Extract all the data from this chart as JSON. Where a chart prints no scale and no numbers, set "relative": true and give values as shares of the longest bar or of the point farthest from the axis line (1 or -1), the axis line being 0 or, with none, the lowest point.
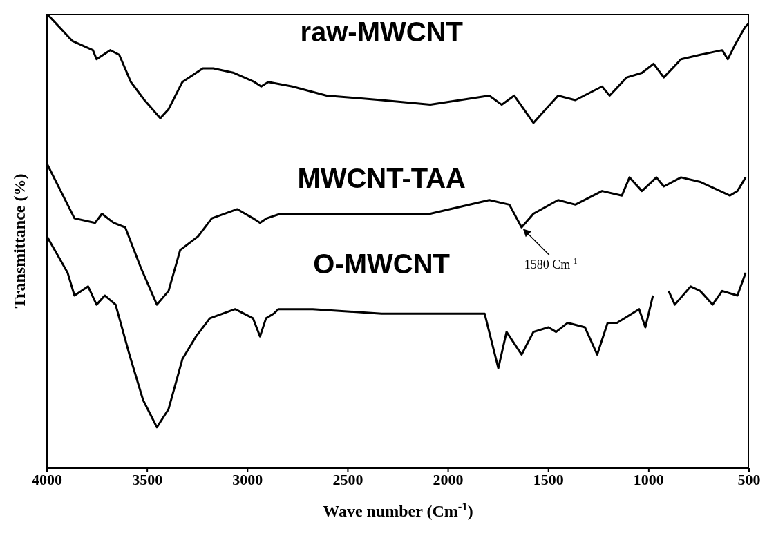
{
  "chart_data": {
    "type": "line",
    "relative": true,
    "xlabel": "Wave number (Cm$^{-1}$)",
    "ylabel": "Transmittance (%)",
    "xlim": [
      4000,
      500
    ],
    "xticks": [
      4000,
      3500,
      3000,
      2500,
      2000,
      1500,
      1000,
      500
    ],
    "annotations": [
      {
        "text": "1580 Cm$^{-1}$",
        "x": 1634,
        "y": 0.53
      }
    ],
    "series": [
      {
        "name": "raw-MWCNT",
        "color": "#000000",
        "x": [
          4000,
          3873,
          3771,
          3753,
          3685,
          3640,
          3582,
          3514,
          3435,
          3394,
          3325,
          3223,
          3171,
          3068,
          2966,
          2932,
          2897,
          2777,
          2606,
          2332,
          2089,
          1795,
          1733,
          1671,
          1575,
          1452,
          1366,
          1233,
          1195,
          1110,
          1034,
          976,
          925,
          839,
          743,
          634,
          606,
          572,
          521,
          500
        ],
        "values": [
          1.0,
          0.94,
          0.92,
          0.9,
          0.92,
          0.91,
          0.85,
          0.81,
          0.77,
          0.79,
          0.85,
          0.88,
          0.88,
          0.87,
          0.85,
          0.84,
          0.85,
          0.84,
          0.82,
          0.81,
          0.8,
          0.82,
          0.8,
          0.82,
          0.76,
          0.82,
          0.81,
          0.84,
          0.82,
          0.86,
          0.87,
          0.89,
          0.86,
          0.9,
          0.91,
          0.92,
          0.9,
          0.93,
          0.97,
          0.98
        ]
      },
      {
        "name": "MWCNT-TAA",
        "color": "#000000",
        "x": [
          4000,
          3863,
          3760,
          3726,
          3668,
          3610,
          3531,
          3452,
          3394,
          3336,
          3247,
          3178,
          3051,
          2973,
          2938,
          2904,
          2836,
          2332,
          2089,
          1795,
          1695,
          1634,
          1575,
          1452,
          1366,
          1233,
          1134,
          1096,
          1034,
          962,
          925,
          839,
          743,
          644,
          596,
          558,
          517
        ],
        "values": [
          0.67,
          0.55,
          0.54,
          0.56,
          0.54,
          0.53,
          0.44,
          0.36,
          0.39,
          0.48,
          0.51,
          0.55,
          0.57,
          0.55,
          0.54,
          0.55,
          0.56,
          0.56,
          0.56,
          0.59,
          0.58,
          0.53,
          0.56,
          0.59,
          0.58,
          0.61,
          0.6,
          0.64,
          0.61,
          0.64,
          0.62,
          0.64,
          0.63,
          0.61,
          0.6,
          0.61,
          0.64
        ]
      },
      {
        "name": "O-MWCNT",
        "color": "#000000",
        "x": [
          4000,
          3897,
          3863,
          3795,
          3753,
          3712,
          3658,
          3589,
          3521,
          3452,
          3394,
          3325,
          3257,
          3188,
          3062,
          2973,
          2938,
          2908,
          2870,
          2846,
          2675,
          2332,
          1818,
          1750,
          1709,
          1634,
          1575,
          1500,
          1462,
          1404,
          1318,
          1257,
          1205,
          1158,
          1048,
          1017,
          979,
          940,
          901,
          870,
          791,
          743,
          682,
          634,
          558,
          517
        ],
        "values": [
          0.51,
          0.43,
          0.38,
          0.4,
          0.36,
          0.38,
          0.36,
          0.25,
          0.15,
          0.09,
          0.13,
          0.24,
          0.29,
          0.33,
          0.35,
          0.33,
          0.29,
          0.33,
          0.34,
          0.35,
          0.35,
          0.34,
          0.34,
          0.22,
          0.3,
          0.25,
          0.3,
          0.31,
          0.3,
          0.32,
          0.31,
          0.25,
          0.32,
          0.32,
          0.35,
          0.31,
          0.38,
          null,
          0.39,
          0.36,
          0.4,
          0.39,
          0.36,
          0.39,
          0.38,
          0.43
        ]
      }
    ]
  }
}
